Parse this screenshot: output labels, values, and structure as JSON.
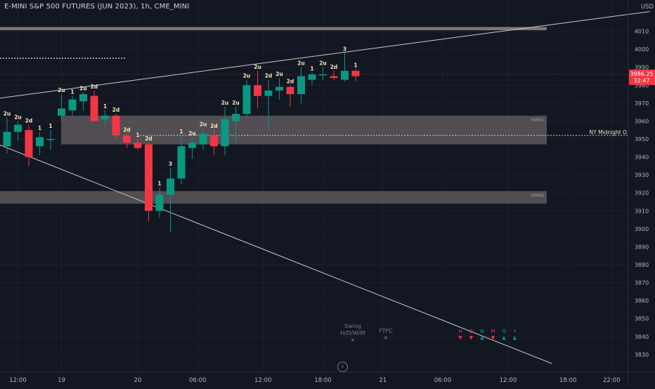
{
  "header": {
    "symbol_title": "E-MINI S&P 500 FUTURES (JUN 2023), 1h, CME_MINI",
    "currency": "USD"
  },
  "price_badge": {
    "price": "3986.25",
    "countdown": "32:47",
    "color": "#f23645"
  },
  "zones": [
    {
      "label": "NWOG"
    },
    {
      "label": "NWOG"
    }
  ],
  "ny_midnight_label": "NY Midnight O",
  "swing_panel": {
    "title": "Swing",
    "subtitle": "H/D/W/M",
    "mark": "✕"
  },
  "ftfc_panel": {
    "title": "FTFC",
    "mark": "✕"
  },
  "tf_panel": {
    "letters": [
      "H",
      "D",
      "W",
      "M",
      "Q",
      "Y"
    ],
    "directions": [
      "down",
      "down",
      "up",
      "down",
      "up",
      "up"
    ]
  },
  "colors": {
    "up": "#089981",
    "down": "#f23645",
    "zone": "#857a7c",
    "strat_label": "#f0e6b6",
    "trendline": "#c9cbd2"
  },
  "chart_data": {
    "type": "candlestick",
    "y_axis": {
      "range": [
        3825,
        4025
      ],
      "ticks": [
        4010,
        4000,
        3990,
        3980,
        3970,
        3960,
        3950,
        3940,
        3930,
        3920,
        3910,
        3900,
        3890,
        3880,
        3870,
        3860,
        3850,
        3840,
        3830
      ]
    },
    "x_axis": {
      "ticks": [
        {
          "label": "12:00",
          "bar": 1
        },
        {
          "label": "19",
          "bar": 5
        },
        {
          "label": "20",
          "bar": 12
        },
        {
          "label": "06:00",
          "bar": 17.5
        },
        {
          "label": "12:00",
          "bar": 23.5
        },
        {
          "label": "18:00",
          "bar": 29
        },
        {
          "label": "21",
          "bar": 34.5
        },
        {
          "label": "06:00",
          "bar": 40
        },
        {
          "label": "12:00",
          "bar": 46
        },
        {
          "label": "18:00",
          "bar": 51.5
        },
        {
          "label": "22:00",
          "bar": 55.5
        }
      ]
    },
    "candles": [
      {
        "o": 3946,
        "h": 3962,
        "l": 3942,
        "c": 3954,
        "label": "2u"
      },
      {
        "o": 3954,
        "h": 3960,
        "l": 3949,
        "c": 3958,
        "label": "2u"
      },
      {
        "o": 3955,
        "h": 3958,
        "l": 3935,
        "c": 3940,
        "label": "2d"
      },
      {
        "o": 3946,
        "h": 3954,
        "l": 3941,
        "c": 3951,
        "label": "1"
      },
      {
        "o": 3950,
        "h": 3955,
        "l": 3944,
        "c": 3950,
        "label": "1"
      },
      {
        "o": 3963,
        "h": 3975,
        "l": 3960,
        "c": 3967,
        "label": "2u"
      },
      {
        "o": 3966,
        "h": 3974,
        "l": 3963,
        "c": 3972,
        "label": "1"
      },
      {
        "o": 3971,
        "h": 3976,
        "l": 3966,
        "c": 3975,
        "label": "2u"
      },
      {
        "o": 3974,
        "h": 3977,
        "l": 3962,
        "c": 3960,
        "label": "2d"
      },
      {
        "o": 3961,
        "h": 3966,
        "l": 3957,
        "c": 3963,
        "label": "1"
      },
      {
        "o": 3963,
        "h": 3964,
        "l": 3950,
        "c": 3952,
        "label": "2d"
      },
      {
        "o": 3952,
        "h": 3953,
        "l": 3945,
        "c": 3948,
        "label": "2d"
      },
      {
        "o": 3948,
        "h": 3950,
        "l": 3944,
        "c": 3945,
        "label": "1"
      },
      {
        "o": 3947,
        "h": 3948,
        "l": 3904,
        "c": 3910,
        "label": "2d"
      },
      {
        "o": 3910,
        "h": 3923,
        "l": 3906,
        "c": 3919,
        "label": "1"
      },
      {
        "o": 3919,
        "h": 3934,
        "l": 3898,
        "c": 3928,
        "label": "3"
      },
      {
        "o": 3928,
        "h": 3952,
        "l": 3925,
        "c": 3946,
        "label": "1"
      },
      {
        "o": 3945,
        "h": 3951,
        "l": 3939,
        "c": 3948,
        "label": "2u"
      },
      {
        "o": 3947,
        "h": 3956,
        "l": 3944,
        "c": 3953,
        "label": "2u"
      },
      {
        "o": 3952,
        "h": 3955,
        "l": 3941,
        "c": 3946,
        "label": "2d"
      },
      {
        "o": 3946,
        "h": 3968,
        "l": 3941,
        "c": 3961,
        "label": "2u"
      },
      {
        "o": 3960,
        "h": 3968,
        "l": 3948,
        "c": 3964,
        "label": "2u"
      },
      {
        "o": 3964,
        "h": 3983,
        "l": 3962,
        "c": 3980,
        "label": "2u"
      },
      {
        "o": 3980,
        "h": 3988,
        "l": 3967,
        "c": 3974,
        "label": "2u"
      },
      {
        "o": 3974,
        "h": 3983,
        "l": 3955,
        "c": 3977,
        "label": "2d"
      },
      {
        "o": 3977,
        "h": 3984,
        "l": 3972,
        "c": 3979,
        "label": "2u"
      },
      {
        "o": 3979,
        "h": 3980,
        "l": 3968,
        "c": 3975,
        "label": "2d"
      },
      {
        "o": 3975,
        "h": 3990,
        "l": 3970,
        "c": 3985,
        "label": "2u"
      },
      {
        "o": 3983,
        "h": 3987,
        "l": 3980,
        "c": 3986,
        "label": "1"
      },
      {
        "o": 3986,
        "h": 3990,
        "l": 3983,
        "c": 3986,
        "label": "2u"
      },
      {
        "o": 3985,
        "h": 3988,
        "l": 3983,
        "c": 3984,
        "label": "2d"
      },
      {
        "o": 3983,
        "h": 3998,
        "l": 3982,
        "c": 3988,
        "label": "3"
      },
      {
        "o": 3988,
        "h": 3989,
        "l": 3982,
        "c": 3985,
        "label": "1"
      }
    ],
    "zones": [
      {
        "top": 3963,
        "bottom": 3947,
        "label": "NWOG"
      },
      {
        "top": 3921,
        "bottom": 3914,
        "label": "NWOG"
      }
    ],
    "resistance_band": {
      "top": 4012,
      "bottom": 4011
    },
    "ny_midnight_open": 3952,
    "dotted_level": 3995,
    "current_price_line": 3986,
    "trendlines": [
      {
        "from": {
          "bar": -1,
          "price": 3972.5
        },
        "to": {
          "bar": 59,
          "price": 4021
        }
      },
      {
        "from": {
          "bar": -1,
          "price": 3947.5
        },
        "to": {
          "bar": 50,
          "price": 3825
        }
      }
    ]
  }
}
